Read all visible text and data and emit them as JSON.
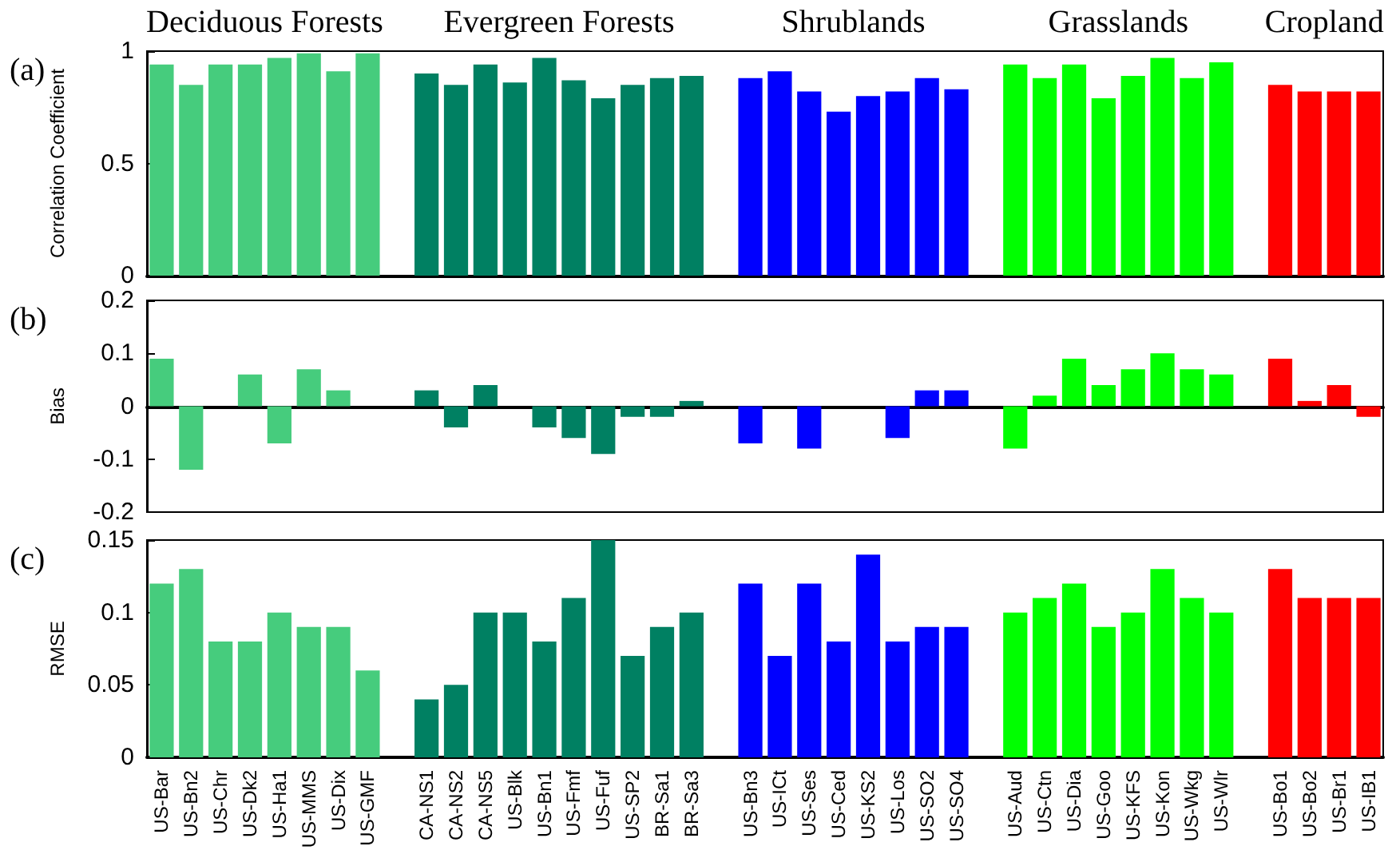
{
  "chart_data": [
    {
      "type": "bar",
      "title": "(a)",
      "ylabel": "Correlation Coefficient",
      "tick_labels": "y",
      "categories": [
        null,
        null,
        null,
        null,
        null,
        null,
        null,
        null,
        null,
        null,
        null,
        null,
        null,
        null,
        null,
        null,
        null,
        null,
        null,
        null,
        null,
        null,
        null,
        null,
        null,
        null,
        null,
        null,
        null,
        null,
        null,
        null,
        null,
        null,
        null,
        null,
        null,
        null,
        null,
        null,
        null,
        null
      ],
      "ylim": [
        0,
        1
      ],
      "yticks": [
        0,
        0.5,
        1
      ],
      "series": [
        {
          "name": "Deciduous Forests",
          "color": "#46cc7d",
          "values": [
            0.94,
            0.85,
            0.94,
            0.94,
            0.97,
            0.99,
            0.91,
            0.99,
            null,
            null,
            null,
            null,
            null,
            null,
            null,
            null,
            null,
            null,
            null,
            null,
            null,
            null,
            null,
            null,
            null,
            null,
            null,
            null,
            null,
            null,
            null,
            null,
            null,
            null,
            null,
            null,
            null,
            null,
            null,
            null,
            null,
            null
          ]
        },
        {
          "name": "Evergreen Forests",
          "color": "#008062",
          "values": [
            null,
            null,
            null,
            null,
            null,
            null,
            null,
            null,
            null,
            0.9,
            0.85,
            0.94,
            0.86,
            0.97,
            0.87,
            0.79,
            0.85,
            0.88,
            0.89,
            null,
            null,
            null,
            null,
            null,
            null,
            null,
            null,
            null,
            null,
            null,
            null,
            null,
            null,
            null,
            null,
            null,
            null,
            null,
            null,
            null,
            null,
            null
          ]
        },
        {
          "name": "Shrublands",
          "color": "#0000ff",
          "values": [
            null,
            null,
            null,
            null,
            null,
            null,
            null,
            null,
            null,
            null,
            null,
            null,
            null,
            null,
            null,
            null,
            null,
            null,
            null,
            null,
            0.88,
            0.91,
            0.82,
            0.73,
            0.8,
            0.82,
            0.88,
            0.83,
            null,
            null,
            null,
            null,
            null,
            null,
            null,
            null,
            null,
            null,
            null,
            null,
            null,
            null
          ]
        },
        {
          "name": "Grasslands",
          "color": "#00ff00",
          "values": [
            null,
            null,
            null,
            null,
            null,
            null,
            null,
            null,
            null,
            null,
            null,
            null,
            null,
            null,
            null,
            null,
            null,
            null,
            null,
            null,
            null,
            null,
            null,
            null,
            null,
            null,
            null,
            null,
            null,
            0.94,
            0.88,
            0.94,
            0.79,
            0.89,
            0.97,
            0.88,
            0.95,
            null,
            null,
            null,
            null,
            null
          ]
        },
        {
          "name": "Cropland",
          "color": "#ff0000",
          "values": [
            null,
            null,
            null,
            null,
            null,
            null,
            null,
            null,
            null,
            null,
            null,
            null,
            null,
            null,
            null,
            null,
            null,
            null,
            null,
            null,
            null,
            null,
            null,
            null,
            null,
            null,
            null,
            null,
            null,
            null,
            null,
            null,
            null,
            null,
            null,
            null,
            null,
            null,
            0.85,
            0.82,
            0.82,
            0.82
          ]
        }
      ]
    },
    {
      "type": "bar",
      "title": "(b)",
      "ylabel": "Bias",
      "tick_labels": "y",
      "categories": [
        null,
        null,
        null,
        null,
        null,
        null,
        null,
        null,
        null,
        null,
        null,
        null,
        null,
        null,
        null,
        null,
        null,
        null,
        null,
        null,
        null,
        null,
        null,
        null,
        null,
        null,
        null,
        null,
        null,
        null,
        null,
        null,
        null,
        null,
        null,
        null,
        null,
        null,
        null,
        null,
        null,
        null
      ],
      "ylim": [
        -0.2,
        0.2
      ],
      "yticks": [
        -0.2,
        -0.1,
        0,
        0.1,
        0.2
      ],
      "series": [
        {
          "color": "#46cc7d",
          "values": [
            0.09,
            -0.12,
            0,
            0.06,
            -0.07,
            0.07,
            0.03,
            0,
            null,
            null,
            null,
            null,
            null,
            null,
            null,
            null,
            null,
            null,
            null,
            null,
            null,
            null,
            null,
            null,
            null,
            null,
            null,
            null,
            null,
            null,
            null,
            null,
            null,
            null,
            null,
            null,
            null,
            null,
            null,
            null,
            null,
            null
          ]
        },
        {
          "color": "#008062",
          "values": [
            null,
            null,
            null,
            null,
            null,
            null,
            null,
            null,
            null,
            0.03,
            -0.04,
            0.04,
            0,
            -0.04,
            -0.06,
            -0.09,
            -0.02,
            -0.02,
            0.01,
            null,
            null,
            null,
            null,
            null,
            null,
            null,
            null,
            null,
            null,
            null,
            null,
            null,
            null,
            null,
            null,
            null,
            null,
            null,
            null,
            null,
            null,
            null
          ]
        },
        {
          "color": "#0000ff",
          "values": [
            null,
            null,
            null,
            null,
            null,
            null,
            null,
            null,
            null,
            null,
            null,
            null,
            null,
            null,
            null,
            null,
            null,
            null,
            null,
            null,
            -0.07,
            0,
            -0.08,
            0,
            0,
            -0.06,
            0.03,
            0.03,
            null,
            null,
            null,
            null,
            null,
            null,
            null,
            null,
            null,
            null,
            null,
            null,
            null,
            null
          ]
        },
        {
          "color": "#00ff00",
          "values": [
            null,
            null,
            null,
            null,
            null,
            null,
            null,
            null,
            null,
            null,
            null,
            null,
            null,
            null,
            null,
            null,
            null,
            null,
            null,
            null,
            null,
            null,
            null,
            null,
            null,
            null,
            null,
            null,
            null,
            -0.08,
            0.02,
            0.09,
            0.04,
            0.07,
            0.1,
            0.07,
            0.06,
            null,
            null,
            null,
            null,
            null
          ]
        },
        {
          "color": "#ff0000",
          "values": [
            null,
            null,
            null,
            null,
            null,
            null,
            null,
            null,
            null,
            null,
            null,
            null,
            null,
            null,
            null,
            null,
            null,
            null,
            null,
            null,
            null,
            null,
            null,
            null,
            null,
            null,
            null,
            null,
            null,
            null,
            null,
            null,
            null,
            null,
            null,
            null,
            null,
            null,
            0.09,
            0.01,
            0.04,
            -0.02
          ]
        }
      ]
    },
    {
      "type": "bar",
      "title": "(c)",
      "ylabel": "RMSE",
      "categories": [
        "US-Bar",
        "US-Bn2",
        "US-Chr",
        "US-Dk2",
        "US-Ha1",
        "US-MMS",
        "US-Dix",
        "US-GMF",
        null,
        "CA-NS1",
        "CA-NS2",
        "CA-NS5",
        "US-Blk",
        "US-Bn1",
        "US-Fmf",
        "US-Fuf",
        "US-SP2",
        "BR-Sa1",
        "BR-Sa3",
        null,
        "US-Bn3",
        "US-ICt",
        "US-Ses",
        "US-Ced",
        "US-KS2",
        "US-Los",
        "US-SO2",
        "US-SO4",
        null,
        "US-Aud",
        "US-Ctn",
        "US-Dia",
        "US-Goo",
        "US-KFS",
        "US-Kon",
        "US-Wkg",
        "US-Wlr",
        null,
        "US-Bo1",
        "US-Bo2",
        "US-Br1",
        "US-IB1"
      ],
      "ylim": [
        0,
        0.15
      ],
      "yticks": [
        0,
        0.05,
        0.1,
        0.15
      ],
      "series": [
        {
          "color": "#46cc7d",
          "values": [
            0.12,
            0.13,
            0.08,
            0.08,
            0.1,
            0.09,
            0.09,
            0.06,
            null,
            null,
            null,
            null,
            null,
            null,
            null,
            null,
            null,
            null,
            null,
            null,
            null,
            null,
            null,
            null,
            null,
            null,
            null,
            null,
            null,
            null,
            null,
            null,
            null,
            null,
            null,
            null,
            null,
            null,
            null,
            null,
            null,
            null
          ]
        },
        {
          "color": "#008062",
          "values": [
            null,
            null,
            null,
            null,
            null,
            null,
            null,
            null,
            null,
            0.04,
            0.05,
            0.1,
            0.1,
            0.08,
            0.11,
            0.15,
            0.07,
            0.09,
            0.1,
            null,
            null,
            null,
            null,
            null,
            null,
            null,
            null,
            null,
            null,
            null,
            null,
            null,
            null,
            null,
            null,
            null,
            null,
            null,
            null,
            null,
            null,
            null
          ]
        },
        {
          "color": "#0000ff",
          "values": [
            null,
            null,
            null,
            null,
            null,
            null,
            null,
            null,
            null,
            null,
            null,
            null,
            null,
            null,
            null,
            null,
            null,
            null,
            null,
            null,
            0.12,
            0.07,
            0.12,
            0.08,
            0.14,
            0.08,
            0.09,
            0.09,
            null,
            null,
            null,
            null,
            null,
            null,
            null,
            null,
            null,
            null,
            null,
            null,
            null,
            null
          ]
        },
        {
          "color": "#00ff00",
          "values": [
            null,
            null,
            null,
            null,
            null,
            null,
            null,
            null,
            null,
            null,
            null,
            null,
            null,
            null,
            null,
            null,
            null,
            null,
            null,
            null,
            null,
            null,
            null,
            null,
            null,
            null,
            null,
            null,
            null,
            0.1,
            0.11,
            0.12,
            0.09,
            0.1,
            0.13,
            0.11,
            0.1,
            null,
            null,
            null,
            null,
            null
          ]
        },
        {
          "color": "#ff0000",
          "values": [
            null,
            null,
            null,
            null,
            null,
            null,
            null,
            null,
            null,
            null,
            null,
            null,
            null,
            null,
            null,
            null,
            null,
            null,
            null,
            null,
            null,
            null,
            null,
            null,
            null,
            null,
            null,
            null,
            null,
            null,
            null,
            null,
            null,
            null,
            null,
            null,
            null,
            null,
            0.13,
            0.11,
            0.11,
            0.11
          ]
        }
      ]
    }
  ]
}
